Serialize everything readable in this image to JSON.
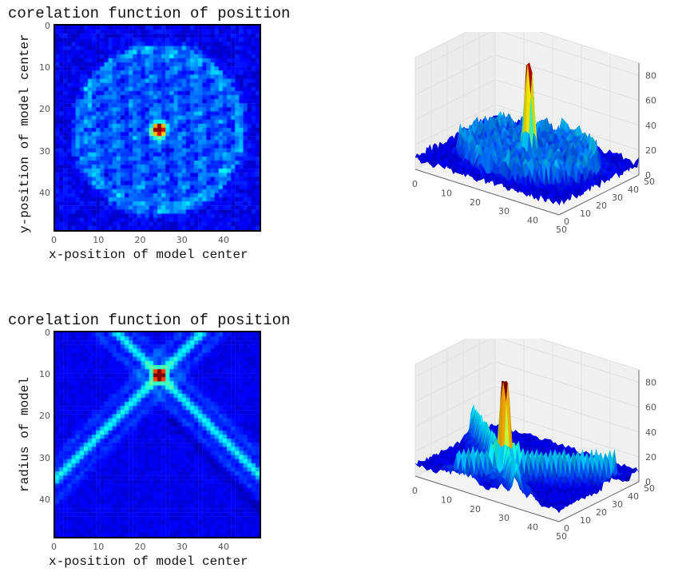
{
  "chart_data": [
    {
      "type": "heatmap",
      "title": "corelation function of position",
      "xlabel": "x-position of model  center",
      "ylabel": "y-position of model  center",
      "xlim": [
        0,
        49
      ],
      "ylim": [
        49,
        0
      ],
      "xticks": [
        0,
        10,
        20,
        30,
        40
      ],
      "yticks": [
        0,
        10,
        20,
        30,
        40
      ],
      "peak": {
        "x": 25,
        "y": 25
      },
      "colormap": "jet"
    },
    {
      "type": "surface3d",
      "zlim": [
        0,
        90
      ],
      "xticks": [
        0,
        10,
        20,
        30,
        40,
        50
      ],
      "yticks": [
        0,
        10,
        20,
        30,
        40,
        50
      ],
      "zticks": [
        0,
        20,
        40,
        60,
        80
      ],
      "peak_value": 88,
      "colormap": "jet"
    },
    {
      "type": "heatmap",
      "title": "corelation function of position",
      "xlabel": "x-position of model  center",
      "ylabel": "radius of model",
      "xlim": [
        0,
        49
      ],
      "ylim": [
        49,
        0
      ],
      "xticks": [
        0,
        10,
        20,
        30,
        40
      ],
      "yticks": [
        0,
        10,
        20,
        30,
        40
      ],
      "peak": {
        "x": 25,
        "y": 10
      },
      "colormap": "jet"
    },
    {
      "type": "surface3d",
      "zlim": [
        0,
        90
      ],
      "xticks": [
        0,
        10,
        20,
        30,
        40,
        50
      ],
      "yticks": [
        0,
        10,
        20,
        30,
        40,
        50
      ],
      "zticks": [
        0,
        20,
        40,
        60,
        80
      ],
      "peak_value": 88,
      "colormap": "jet"
    }
  ]
}
